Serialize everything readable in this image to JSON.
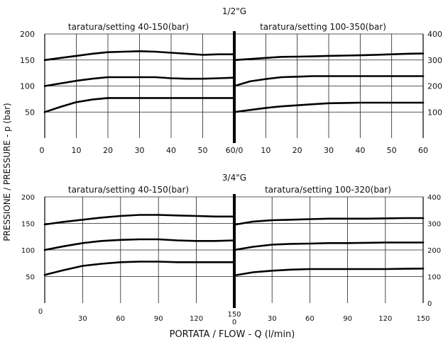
{
  "y_axis_label": "PRESSIONE / PRESSURE -   p (bar)",
  "x_axis_label": "PORTATA / FLOW - Q (l/min)",
  "chart_data": [
    {
      "type": "line",
      "title": "1/2\"G",
      "grid": true,
      "panels": [
        {
          "subtitle": "taratura/setting 40-150(bar)",
          "y_axis_side": "left",
          "ylim": [
            0,
            200
          ],
          "yticks": [
            50,
            100,
            150,
            200
          ],
          "xlim": [
            0,
            60
          ],
          "xticks": [
            "0",
            "10",
            "20",
            "30",
            "40",
            "50",
            "60/0"
          ],
          "series": [
            {
              "x": [
                0,
                5,
                10,
                15,
                20,
                25,
                30,
                35,
                40,
                45,
                50,
                55,
                60
              ],
              "y": [
                50,
                60,
                69,
                74,
                77,
                77,
                77,
                77,
                77,
                77,
                77,
                77,
                77
              ]
            },
            {
              "x": [
                0,
                5,
                10,
                15,
                20,
                25,
                30,
                35,
                40,
                45,
                50,
                55,
                60
              ],
              "y": [
                100,
                105,
                110,
                114,
                117,
                117,
                117,
                117,
                115,
                114,
                114,
                115,
                116
              ]
            },
            {
              "x": [
                0,
                5,
                10,
                15,
                20,
                25,
                30,
                35,
                40,
                45,
                50,
                55,
                60
              ],
              "y": [
                150,
                154,
                158,
                162,
                165,
                166,
                167,
                166,
                164,
                162,
                160,
                161,
                161
              ]
            }
          ]
        },
        {
          "subtitle": "taratura/setting 100-350(bar)",
          "y_axis_side": "right",
          "ylim": [
            0,
            400
          ],
          "yticks": [
            100,
            200,
            300,
            400
          ],
          "xlim": [
            0,
            60
          ],
          "xticks": [
            "10",
            "20",
            "30",
            "40",
            "50",
            "60"
          ],
          "series": [
            {
              "x": [
                0,
                5,
                10,
                15,
                20,
                25,
                30,
                35,
                40,
                45,
                50,
                55,
                60
              ],
              "y": [
                100,
                108,
                116,
                122,
                126,
                130,
                134,
                135,
                136,
                136,
                136,
                136,
                136
              ]
            },
            {
              "x": [
                0,
                5,
                10,
                15,
                20,
                25,
                30,
                35,
                40,
                45,
                50,
                55,
                60
              ],
              "y": [
                200,
                218,
                227,
                234,
                236,
                238,
                238,
                238,
                238,
                238,
                238,
                238,
                238
              ]
            },
            {
              "x": [
                0,
                5,
                10,
                15,
                20,
                25,
                30,
                35,
                40,
                45,
                50,
                55,
                60
              ],
              "y": [
                300,
                304,
                308,
                312,
                313,
                314,
                316,
                317,
                318,
                320,
                322,
                324,
                325
              ]
            }
          ]
        }
      ]
    },
    {
      "type": "line",
      "title": "3/4\"G",
      "grid": true,
      "panels": [
        {
          "subtitle": "taratura/setting 40-150(bar)",
          "y_axis_side": "left",
          "ylim": [
            0,
            200
          ],
          "yticks": [
            50,
            100,
            150,
            200
          ],
          "xlim": [
            0,
            150
          ],
          "xticks": [
            "0",
            "30",
            "60",
            "90",
            "120",
            "150"
          ],
          "series": [
            {
              "x": [
                0,
                15,
                30,
                45,
                60,
                75,
                90,
                105,
                120,
                135,
                150
              ],
              "y": [
                53,
                62,
                70,
                74,
                77,
                78,
                78,
                77,
                77,
                77,
                77
              ]
            },
            {
              "x": [
                0,
                15,
                30,
                45,
                60,
                75,
                90,
                105,
                120,
                135,
                150
              ],
              "y": [
                100,
                107,
                113,
                117,
                119,
                120,
                120,
                118,
                117,
                117,
                118
              ]
            },
            {
              "x": [
                0,
                15,
                30,
                45,
                60,
                75,
                90,
                105,
                120,
                135,
                150
              ],
              "y": [
                148,
                153,
                157,
                161,
                164,
                166,
                166,
                165,
                164,
                163,
                163
              ]
            }
          ]
        },
        {
          "subtitle": "taratura/setting 100-320(bar)",
          "y_axis_side": "right",
          "ylim": [
            0,
            400
          ],
          "yticks": [
            0,
            100,
            200,
            300,
            400
          ],
          "xlim": [
            0,
            150
          ],
          "xticks": [
            "0",
            "30",
            "60",
            "90",
            "120",
            "150"
          ],
          "series": [
            {
              "x": [
                0,
                15,
                30,
                45,
                60,
                75,
                90,
                105,
                120,
                135,
                150
              ],
              "y": [
                104,
                116,
                122,
                126,
                128,
                128,
                128,
                128,
                128,
                129,
                130
              ]
            },
            {
              "x": [
                0,
                15,
                30,
                45,
                60,
                75,
                90,
                105,
                120,
                135,
                150
              ],
              "y": [
                200,
                212,
                220,
                223,
                224,
                226,
                226,
                227,
                228,
                228,
                228
              ]
            },
            {
              "x": [
                0,
                15,
                30,
                45,
                60,
                75,
                90,
                105,
                120,
                135,
                150
              ],
              "y": [
                295,
                307,
                312,
                314,
                316,
                318,
                318,
                318,
                319,
                320,
                320
              ]
            }
          ]
        }
      ]
    }
  ]
}
